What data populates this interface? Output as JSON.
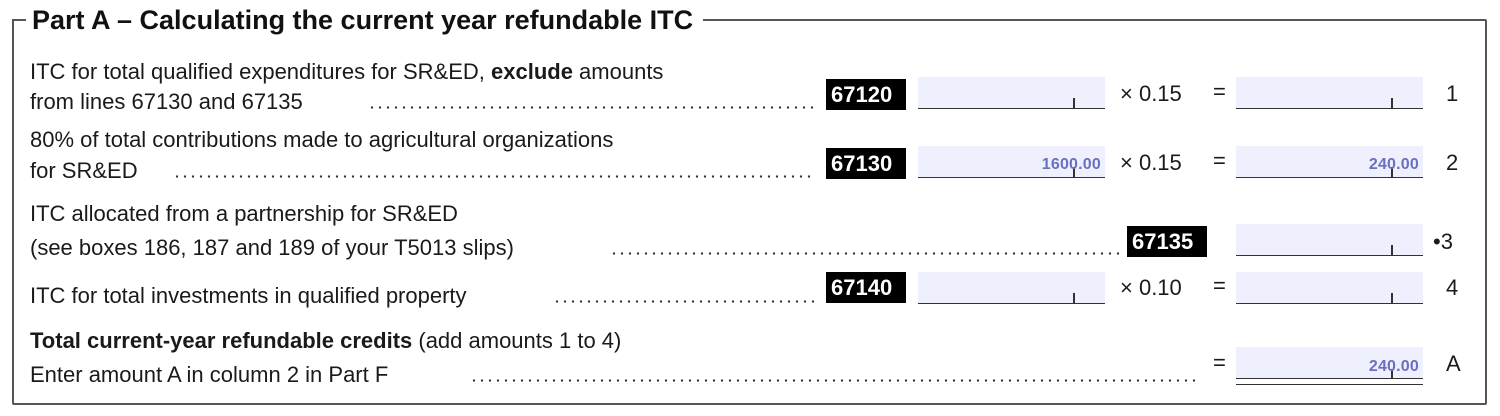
{
  "section_title": "Part A – Calculating the current year refundable ITC",
  "rows": [
    {
      "line1_pre": "ITC for total qualified expenditures for SR&ED, ",
      "line1_bold": "exclude",
      "line1_post": " amounts",
      "line2": "from lines 67130 and 67135",
      "code": "67120",
      "input_value": "",
      "multiplier": "× 0.15",
      "equals": "=",
      "result_value": "",
      "line_no": "1"
    },
    {
      "line1": "80% of total contributions made to agricultural organizations",
      "line2": "for SR&ED",
      "code": "67130",
      "input_value": "1600.00",
      "multiplier": "× 0.15",
      "equals": "=",
      "result_value": "240.00",
      "line_no": "2"
    },
    {
      "line1": "ITC allocated from a partnership for SR&ED",
      "line2": "(see boxes 186, 187 and 189 of your T5013 slips)",
      "code": "67135",
      "result_value": "",
      "line_no": "•3"
    },
    {
      "line1": "ITC for total investments in qualified property",
      "code": "67140",
      "input_value": "",
      "multiplier": "× 0.10",
      "equals": "=",
      "result_value": "",
      "line_no": "4"
    }
  ],
  "total": {
    "label_bold": "Total current-year refundable credits",
    "label_rest": " (add amounts 1 to 4)",
    "line2": "Enter amount A in column 2 in Part F",
    "equals": "=",
    "value": "240.00",
    "line_no": "A"
  },
  "colors": {
    "field_bg": "#eef1fd",
    "value_text": "#6b6fbf",
    "code_bg": "#000000"
  }
}
